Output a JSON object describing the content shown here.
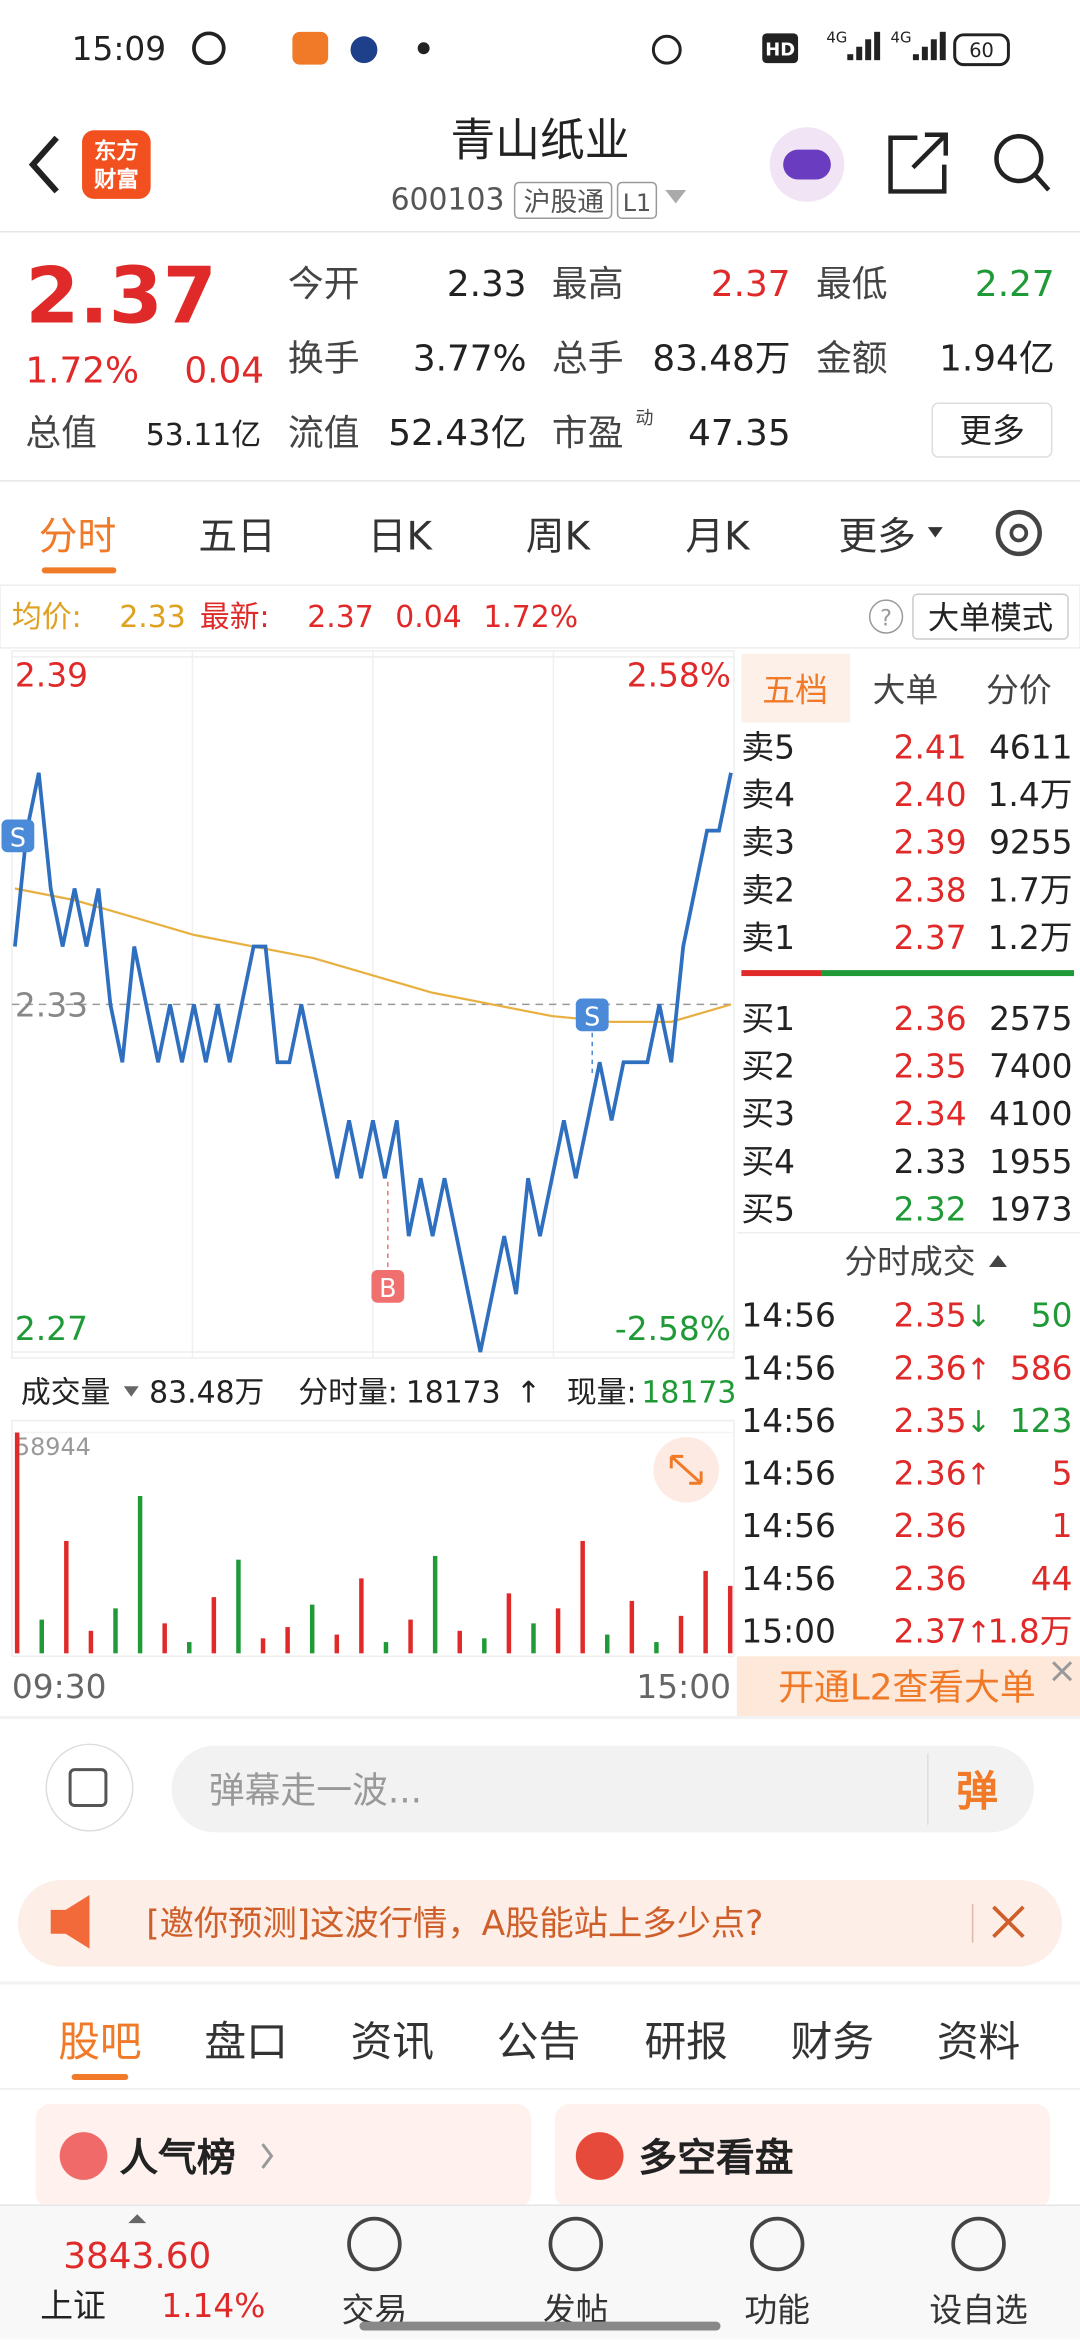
{
  "status_bar": {
    "time": "15:09",
    "hd": "HD",
    "network": [
      "4G",
      "4G"
    ],
    "battery": "60"
  },
  "header": {
    "logo": [
      "东方",
      "财富"
    ],
    "title": "青山纸业",
    "code": "600103",
    "market": "沪股通",
    "level": "L1"
  },
  "quote": {
    "price": "2.37",
    "change_pct": "1.72%",
    "change": "0.04",
    "color": "#e02929",
    "fields": [
      {
        "label": "今开",
        "value": "2.33",
        "color": "#222222"
      },
      {
        "label": "最高",
        "value": "2.37",
        "color": "#e02929"
      },
      {
        "label": "最低",
        "value": "2.27",
        "color": "#1f9a37"
      },
      {
        "label": "换手",
        "value": "3.77%",
        "color": "#222222"
      },
      {
        "label": "总手",
        "value": "83.48万",
        "color": "#222222"
      },
      {
        "label": "金额",
        "value": "1.94亿",
        "color": "#222222"
      },
      {
        "label": "总值",
        "value": "53.11亿",
        "color": "#222222"
      },
      {
        "label": "流值",
        "value": "52.43亿",
        "color": "#222222"
      },
      {
        "label": "市盈",
        "sup": "动",
        "value": "47.35",
        "color": "#222222"
      }
    ],
    "more": "更多"
  },
  "tabs": {
    "items": [
      "分时",
      "五日",
      "日K",
      "周K",
      "月K",
      "更多"
    ],
    "active": 0
  },
  "info_line": {
    "avg_label": "均价:",
    "avg": "2.33",
    "latest_label": "最新:",
    "latest": "2.37",
    "change": "0.04",
    "change_pct": "1.72%",
    "help": "?",
    "mode": "大单模式"
  },
  "intraday": {
    "ylim": [
      2.27,
      2.39
    ],
    "yticks": [
      2.27,
      2.33,
      2.39
    ],
    "tick_colors": [
      "#1f9a37",
      "#888888",
      "#e02929"
    ],
    "pct_labels": [
      "2.58%",
      "-2.58%"
    ],
    "price": {
      "color": "#2f6fc0",
      "values": [
        2.34,
        2.36,
        2.37,
        2.35,
        2.34,
        2.35,
        2.34,
        2.35,
        2.33,
        2.32,
        2.34,
        2.33,
        2.32,
        2.33,
        2.32,
        2.33,
        2.32,
        2.33,
        2.32,
        2.33,
        2.34,
        2.34,
        2.32,
        2.32,
        2.33,
        2.32,
        2.31,
        2.3,
        2.31,
        2.3,
        2.31,
        2.3,
        2.31,
        2.29,
        2.3,
        2.29,
        2.3,
        2.29,
        2.28,
        2.27,
        2.28,
        2.29,
        2.28,
        2.3,
        2.29,
        2.3,
        2.31,
        2.3,
        2.31,
        2.32,
        2.31,
        2.32,
        2.32,
        2.32,
        2.33,
        2.32,
        2.34,
        2.35,
        2.36,
        2.36,
        2.37
      ]
    },
    "avg": {
      "color": "#e8b040",
      "values": [
        2.35,
        2.348,
        2.345,
        2.342,
        2.34,
        2.338,
        2.335,
        2.332,
        2.33,
        2.328,
        2.327,
        2.327,
        2.33
      ]
    },
    "markers": [
      "S",
      "B",
      "S"
    ]
  },
  "volume": {
    "label": "成交量",
    "total": "83.48万",
    "period_label": "分时量:",
    "period": "18173",
    "period_arrow": "↑",
    "current_label": "现量:",
    "current": "18173",
    "ylim": [
      0,
      58944
    ],
    "values": [
      58944,
      9000,
      30000,
      6000,
      12000,
      42000,
      8000,
      3000,
      15000,
      25000,
      4000,
      7000,
      13000,
      5000,
      20000,
      3000,
      9000,
      26000,
      6000,
      4000,
      16000,
      8000,
      12000,
      30000,
      5000,
      14000,
      3000,
      10000,
      22000,
      18000
    ],
    "colors": [
      "#e02929",
      "#1f9a37",
      "#e02929",
      "#e02929",
      "#1f9a37",
      "#1f9a37",
      "#e02929",
      "#1f9a37",
      "#e02929",
      "#1f9a37",
      "#e02929",
      "#e02929",
      "#1f9a37",
      "#e02929",
      "#e02929",
      "#1f9a37",
      "#e02929",
      "#1f9a37",
      "#e02929",
      "#1f9a37",
      "#e02929",
      "#1f9a37",
      "#e02929",
      "#e02929",
      "#1f9a37",
      "#e02929",
      "#1f9a37",
      "#e02929",
      "#e02929",
      "#e02929"
    ],
    "time_labels": [
      "09:30",
      "15:00"
    ]
  },
  "order_book": {
    "tabs": [
      "五档",
      "大单",
      "分价"
    ],
    "price_color": "#e02929",
    "asks": [
      {
        "label": "卖5",
        "price": "2.41",
        "volume": "4611",
        "color": "#e02929"
      },
      {
        "label": "卖4",
        "price": "2.40",
        "volume": "1.4万",
        "color": "#e02929"
      },
      {
        "label": "卖3",
        "price": "2.39",
        "volume": "9255",
        "color": "#e02929"
      },
      {
        "label": "卖2",
        "price": "2.38",
        "volume": "1.7万",
        "color": "#e02929"
      },
      {
        "label": "卖1",
        "price": "2.37",
        "volume": "1.2万",
        "color": "#e02929"
      }
    ],
    "bids": [
      {
        "label": "买1",
        "price": "2.36",
        "volume": "2575",
        "color": "#e02929"
      },
      {
        "label": "买2",
        "price": "2.35",
        "volume": "7400",
        "color": "#e02929"
      },
      {
        "label": "买3",
        "price": "2.34",
        "volume": "4100",
        "color": "#e02929"
      },
      {
        "label": "买4",
        "price": "2.33",
        "volume": "1955",
        "color": "#222222"
      },
      {
        "label": "买5",
        "price": "2.32",
        "volume": "1973",
        "color": "#1f9a37"
      }
    ],
    "trades_title": "分时成交",
    "trades": [
      {
        "time": "14:56",
        "price": "2.35",
        "arrow": "↓",
        "volume": "50",
        "color": "#1f9a37"
      },
      {
        "time": "14:56",
        "price": "2.36",
        "arrow": "↑",
        "volume": "586",
        "color": "#e02929"
      },
      {
        "time": "14:56",
        "price": "2.35",
        "arrow": "↓",
        "volume": "123",
        "color": "#1f9a37"
      },
      {
        "time": "14:56",
        "price": "2.36",
        "arrow": "↑",
        "volume": "5",
        "color": "#e02929"
      },
      {
        "time": "14:56",
        "price": "2.36",
        "volume": "1",
        "color": "#e02929"
      },
      {
        "time": "14:56",
        "price": "2.36",
        "volume": "44",
        "color": "#e02929"
      },
      {
        "time": "15:00",
        "price": "2.37",
        "arrow": "↑",
        "volume": "1.8万",
        "color": "#e02929"
      }
    ],
    "l2": "开通L2查看大单"
  },
  "comment": {
    "placeholder": "弹幕走一波...",
    "button": "弹"
  },
  "banner": {
    "text": "[邀你预测]这波行情，A股能站上多少点?"
  },
  "sections": {
    "items": [
      "股吧",
      "盘口",
      "资讯",
      "公告",
      "研报",
      "财务",
      "资料"
    ],
    "active": 0
  },
  "cards": [
    "人气榜",
    "多空看盘"
  ],
  "nav": {
    "index_value": "3843.60",
    "index_name": "上证",
    "index_pct": "1.14%",
    "items": [
      "交易",
      "发帖",
      "功能",
      "设自选"
    ]
  }
}
